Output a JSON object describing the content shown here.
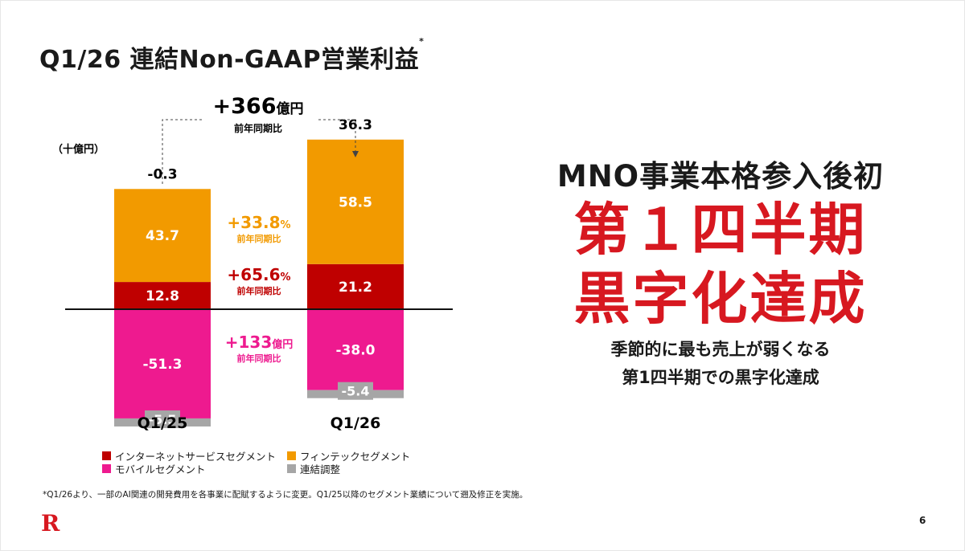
{
  "slide": {
    "title": "Q1/26 連結Non-GAAP営業利益",
    "title_mark": "*",
    "headline": "MNO事業本格参入後初",
    "big_line1": "第１四半期",
    "big_line2": "黒字化達成",
    "sub_line1": "季節的に最も売上が弱くなる",
    "sub_line2": "第1四半期での黒字化達成",
    "footnote": "*Q1/26より、一部のAI関連の開発費用を各事業に配賦するように変更。Q1/25以降のセグメント業績について遡及修正を実施。",
    "logo": "R",
    "page_number": "6"
  },
  "chart_data": {
    "type": "bar",
    "stacked": true,
    "unit_label": "（十億円）",
    "categories": [
      "Q1/25",
      "Q1/26"
    ],
    "totals": [
      "-0.3",
      "36.3"
    ],
    "series": [
      {
        "name": "インターネットサービスセグメント",
        "color": "#bf0000",
        "values": [
          12.8,
          21.2
        ],
        "labels": [
          "12.8",
          "21.2"
        ]
      },
      {
        "name": "フィンテックセグメント",
        "color": "#f29a00",
        "values": [
          43.7,
          58.5
        ],
        "labels": [
          "43.7",
          "58.5"
        ]
      },
      {
        "name": "モバイルセグメント",
        "color": "#ee1a8f",
        "values": [
          -51.3,
          -38.0
        ],
        "labels": [
          "-51.3",
          "-38.0"
        ]
      },
      {
        "name": "連結調整",
        "color": "#a6a6a6",
        "values": [
          -5.5,
          -5.4
        ],
        "labels": [
          "-5.5",
          "-5.4"
        ]
      }
    ],
    "total_change": {
      "value": "+366",
      "unit": "億円",
      "caption": "前年同期比"
    },
    "segment_changes": [
      {
        "series": "フィンテックセグメント",
        "value": "+33.8",
        "unit": "%",
        "caption": "前年同期比",
        "color": "#f29a00"
      },
      {
        "series": "インターネットサービスセグメント",
        "value": "+65.6",
        "unit": "%",
        "caption": "前年同期比",
        "color": "#bf0000"
      },
      {
        "series": "モバイルセグメント",
        "value": "+133",
        "unit": "億円",
        "caption": "前年同期比",
        "color": "#ee1a8f"
      }
    ],
    "legend": [
      {
        "label": "インターネットサービスセグメント",
        "color": "#bf0000"
      },
      {
        "label": "フィンテックセグメント",
        "color": "#f29a00"
      },
      {
        "label": "モバイルセグメント",
        "color": "#ee1a8f"
      },
      {
        "label": "連結調整",
        "color": "#a6a6a6"
      }
    ]
  }
}
